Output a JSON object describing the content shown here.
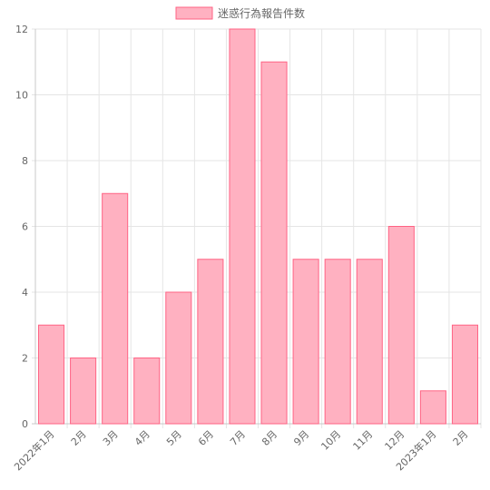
{
  "chart_data": {
    "type": "bar",
    "categories": [
      "2022年1月",
      "2月",
      "3月",
      "4月",
      "5月",
      "6月",
      "7月",
      "8月",
      "9月",
      "10月",
      "11月",
      "12月",
      "2023年1月",
      "2月"
    ],
    "series": [
      {
        "name": "迷惑行為報告件数",
        "values": [
          3,
          2,
          7,
          2,
          4,
          5,
          12,
          11,
          5,
          5,
          5,
          6,
          1,
          3
        ]
      }
    ],
    "y_ticks": [
      "0",
      "2",
      "4",
      "6",
      "8",
      "10",
      "12"
    ],
    "ylim": [
      0,
      12
    ],
    "grid": true,
    "legend": "top-center",
    "colors": {
      "bar_fill": "#ffb1c1",
      "bar_border": "#ff6384",
      "grid": "#e5e5e5",
      "axis": "#c8c8c8",
      "text": "#666666"
    }
  }
}
